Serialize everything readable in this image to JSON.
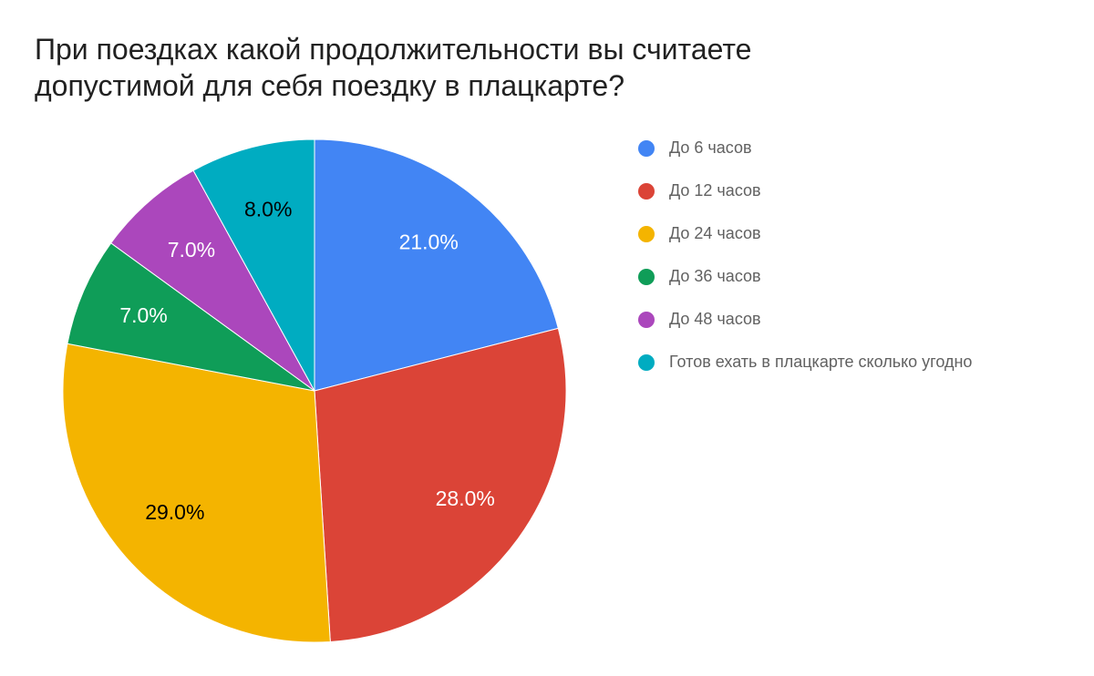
{
  "chart_data": {
    "type": "pie",
    "title": "При поездках какой продолжительности вы считаете допустимой для себя поездку в плацкарте?",
    "legend_position": "right",
    "start_angle": 0,
    "direction": "clockwise",
    "slices": [
      {
        "label": "До 6 часов",
        "value": 21.0,
        "display": "21.0%",
        "color": "#4285F4",
        "label_color": "#ffffff"
      },
      {
        "label": "До 12 часов",
        "value": 28.0,
        "display": "28.0%",
        "color": "#DB4437",
        "label_color": "#ffffff"
      },
      {
        "label": "До 24 часов",
        "value": 29.0,
        "display": "29.0%",
        "color": "#F4B400",
        "label_color": "#000000"
      },
      {
        "label": "До 36 часов",
        "value": 7.0,
        "display": "7.0%",
        "color": "#0F9D58",
        "label_color": "#ffffff"
      },
      {
        "label": "До 48 часов",
        "value": 7.0,
        "display": "7.0%",
        "color": "#AB47BC",
        "label_color": "#ffffff"
      },
      {
        "label": "Готов ехать в плацкарте сколько угодно",
        "value": 8.0,
        "display": "8.0%",
        "color": "#00ACC1",
        "label_color": "#000000"
      }
    ]
  }
}
